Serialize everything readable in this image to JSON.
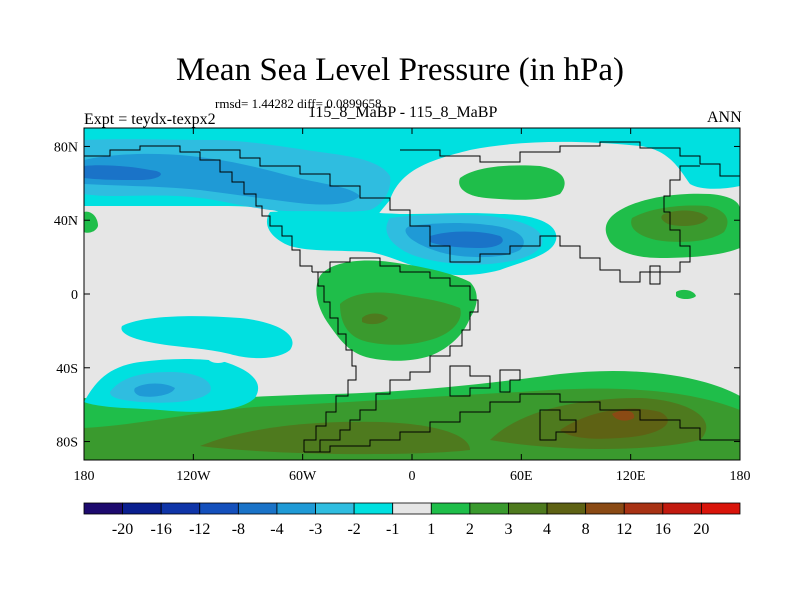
{
  "title": "Mean Sea Level Pressure (in hPa)",
  "stats_line": "rmsd= 1.44282 diff= 0.0899658",
  "experiment_label": "Expt = teydx-texpx2",
  "subtitle": "115_8_MaBP - 115_8_MaBP",
  "season": "ANN",
  "map": {
    "projection": "cylindrical equidistant",
    "lon_range": [
      -180,
      180
    ],
    "lat_range": [
      -90,
      90
    ],
    "lon_ticks": [
      {
        "value": -180,
        "label": "180"
      },
      {
        "value": -120,
        "label": "120W"
      },
      {
        "value": -60,
        "label": "60W"
      },
      {
        "value": 0,
        "label": "0"
      },
      {
        "value": 60,
        "label": "60E"
      },
      {
        "value": 120,
        "label": "120E"
      },
      {
        "value": 180,
        "label": "180"
      }
    ],
    "lat_ticks": [
      {
        "value": 80,
        "label": "80N"
      },
      {
        "value": 40,
        "label": "40N"
      },
      {
        "value": 0,
        "label": "0"
      },
      {
        "value": -40,
        "label": "40S"
      },
      {
        "value": -80,
        "label": "80S"
      }
    ],
    "background_class": "-1 to 1"
  },
  "colorbar": {
    "boundary_labels": [
      "-20",
      "-16",
      "-12",
      "-8",
      "-4",
      "-3",
      "-2",
      "-1",
      "1",
      "2",
      "3",
      "4",
      "8",
      "12",
      "16",
      "20"
    ],
    "colors": [
      "#1d0a6e",
      "#0a1f8f",
      "#0f35a8",
      "#1450bc",
      "#1a73c8",
      "#1f9ad6",
      "#2fbde0",
      "#00e0e0",
      "#e6e6e6",
      "#1fbe4a",
      "#3a9a2e",
      "#4e7a1e",
      "#5e6214",
      "#8a4a14",
      "#a83214",
      "#c21a0f",
      "#d9140a"
    ]
  }
}
